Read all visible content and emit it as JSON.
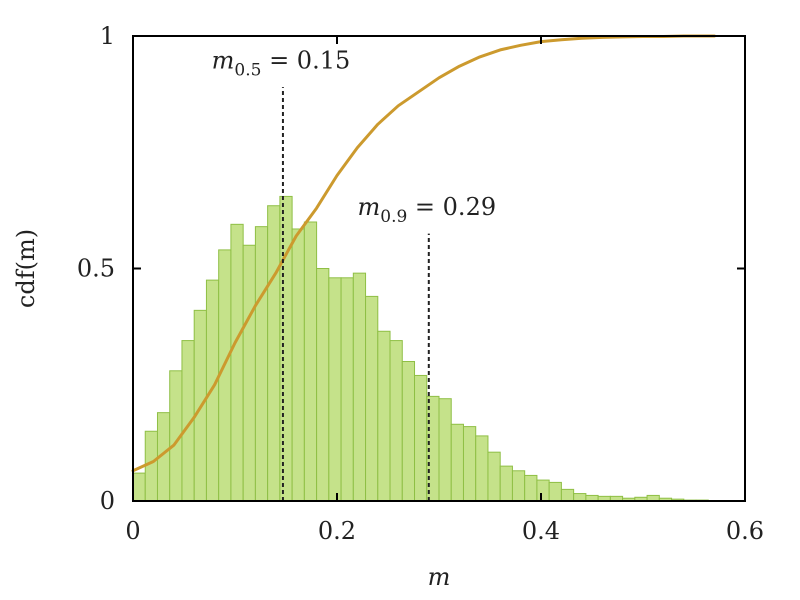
{
  "chart_data": {
    "type": "bar",
    "xlabel": "m",
    "ylabel": "cdf(m)",
    "xlim": [
      0,
      0.6
    ],
    "ylim": [
      0,
      1
    ],
    "xticks": [
      {
        "value": 0,
        "label": "0"
      },
      {
        "value": 0.2,
        "label": "0.2"
      },
      {
        "value": 0.4,
        "label": "0.4"
      },
      {
        "value": 0.6,
        "label": "0.6"
      }
    ],
    "yticks": [
      {
        "value": 0,
        "label": "0"
      },
      {
        "value": 0.5,
        "label": "0.5"
      },
      {
        "value": 1,
        "label": "1"
      }
    ],
    "grid": false,
    "colors": {
      "histogram_fill": "#c5e28a",
      "histogram_edge": "#8fbf45",
      "cdf_line": "#cc9a2e",
      "marker_line": "#222222"
    },
    "histogram": {
      "bin_width": 0.012,
      "bins_start": [
        0,
        0.012,
        0.024,
        0.036,
        0.048,
        0.06,
        0.072,
        0.084,
        0.096,
        0.108,
        0.12,
        0.132,
        0.144,
        0.156,
        0.168,
        0.18,
        0.192,
        0.204,
        0.216,
        0.228,
        0.24,
        0.252,
        0.264,
        0.276,
        0.288,
        0.3,
        0.312,
        0.324,
        0.336,
        0.348,
        0.36,
        0.372,
        0.384,
        0.396,
        0.408,
        0.42,
        0.432,
        0.444,
        0.456,
        0.468,
        0.48,
        0.492,
        0.504,
        0.516,
        0.528,
        0.54,
        0.552,
        0.564
      ],
      "heights": [
        0.06,
        0.15,
        0.19,
        0.28,
        0.345,
        0.41,
        0.475,
        0.54,
        0.595,
        0.55,
        0.59,
        0.635,
        0.655,
        0.585,
        0.6,
        0.5,
        0.48,
        0.48,
        0.49,
        0.44,
        0.365,
        0.345,
        0.3,
        0.27,
        0.225,
        0.22,
        0.165,
        0.16,
        0.14,
        0.105,
        0.075,
        0.065,
        0.055,
        0.045,
        0.04,
        0.025,
        0.016,
        0.012,
        0.01,
        0.01,
        0.006,
        0.008,
        0.012,
        0.006,
        0.004,
        0.002,
        0.002,
        0.001
      ]
    },
    "cdf": {
      "x": [
        0,
        0.02,
        0.04,
        0.06,
        0.08,
        0.1,
        0.12,
        0.14,
        0.15,
        0.16,
        0.18,
        0.2,
        0.22,
        0.24,
        0.26,
        0.28,
        0.3,
        0.32,
        0.34,
        0.36,
        0.38,
        0.4,
        0.42,
        0.44,
        0.46,
        0.48,
        0.5,
        0.52,
        0.54,
        0.57
      ],
      "y": [
        0.065,
        0.085,
        0.12,
        0.18,
        0.25,
        0.34,
        0.42,
        0.49,
        0.53,
        0.57,
        0.63,
        0.7,
        0.76,
        0.81,
        0.85,
        0.88,
        0.91,
        0.935,
        0.955,
        0.97,
        0.98,
        0.988,
        0.992,
        0.995,
        0.997,
        0.998,
        0.999,
        0.999,
        1.0,
        1.0
      ]
    },
    "annotations": [
      {
        "label_main": "m",
        "label_sub": "0.5",
        "label_rest": " = 0.15",
        "x": 0.147,
        "y_top": 0.89,
        "label_y": 0.93
      },
      {
        "label_main": "m",
        "label_sub": "0.9",
        "label_rest": " = 0.29",
        "x": 0.29,
        "y_top": 0.575,
        "label_y": 0.615
      }
    ]
  }
}
